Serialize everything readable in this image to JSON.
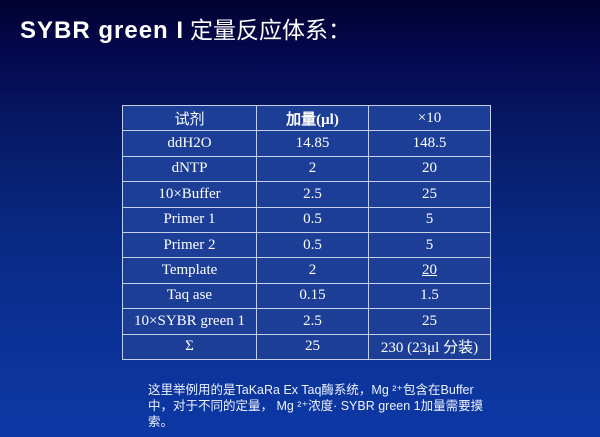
{
  "title": {
    "latin": "SYBR green I",
    "chinese": "定量反应体系："
  },
  "table": {
    "headers": [
      "试剂",
      "加量(μl)",
      "×10"
    ],
    "rows": [
      [
        "ddH2O",
        "14.85",
        "148.5"
      ],
      [
        "dNTP",
        "2",
        "20"
      ],
      [
        "10×Buffer",
        "2.5",
        "25"
      ],
      [
        "Primer 1",
        "0.5",
        "5"
      ],
      [
        "Primer 2",
        "0.5",
        "5"
      ],
      [
        "Template",
        "2",
        "20"
      ],
      [
        "Taq ase",
        "0.15",
        "1.5"
      ],
      [
        "10×SYBR green 1",
        "2.5",
        "25"
      ],
      [
        "Σ",
        "25",
        "230 (23μl 分装)"
      ]
    ]
  },
  "note": {
    "lines": [
      "这里举例用的是TaKaRa Ex Taq酶系统，Mg ²⁺包含在Buffer",
      "中，对于不同的定量， Mg ²⁺浓度· SYBR green 1加量需要摸",
      "索。"
    ]
  },
  "colors": {
    "background_top": "#020231",
    "background_bottom": "#0d38a4",
    "cell_fill": "#1c3e96",
    "cell_border": "#c6cfe6",
    "highlight_green": "#16a24d",
    "text": "#ffffff"
  }
}
